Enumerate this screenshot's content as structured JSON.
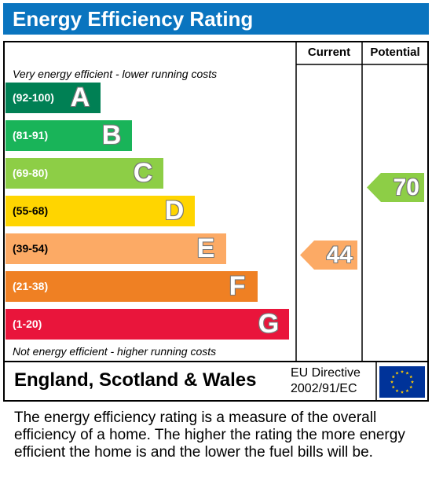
{
  "title": "Energy Efficiency Rating",
  "columns": {
    "current": "Current",
    "potential": "Potential"
  },
  "top_note": "Very energy efficient - lower running costs",
  "bottom_note": "Not energy efficient - higher running costs",
  "bands": [
    {
      "range": "(92-100)",
      "letter": "A",
      "color": "#008054"
    },
    {
      "range": "(81-91)",
      "letter": "B",
      "color": "#19b459"
    },
    {
      "range": "(69-80)",
      "letter": "C",
      "color": "#8dce46"
    },
    {
      "range": "(55-68)",
      "letter": "D",
      "color": "#ffd500"
    },
    {
      "range": "(39-54)",
      "letter": "E",
      "color": "#fcaa65"
    },
    {
      "range": "(21-38)",
      "letter": "F",
      "color": "#ef8023"
    },
    {
      "range": "(1-20)",
      "letter": "G",
      "color": "#e9153b"
    }
  ],
  "current": {
    "value": "44",
    "band": "E",
    "color": "#fcaa65"
  },
  "potential": {
    "value": "70",
    "band": "C",
    "color": "#8dce46"
  },
  "footer": {
    "region": "England, Scotland & Wales",
    "directive_line1": "EU Directive",
    "directive_line2": "2002/91/EC",
    "flag_icon": "eu-flag-icon",
    "flag_color": "#003399",
    "star_color": "#ffcc00"
  },
  "description": "The energy efficiency rating is a measure of the overall efficiency of a home. The higher the rating the more energy efficient the home is and the lower the fuel bills will be."
}
